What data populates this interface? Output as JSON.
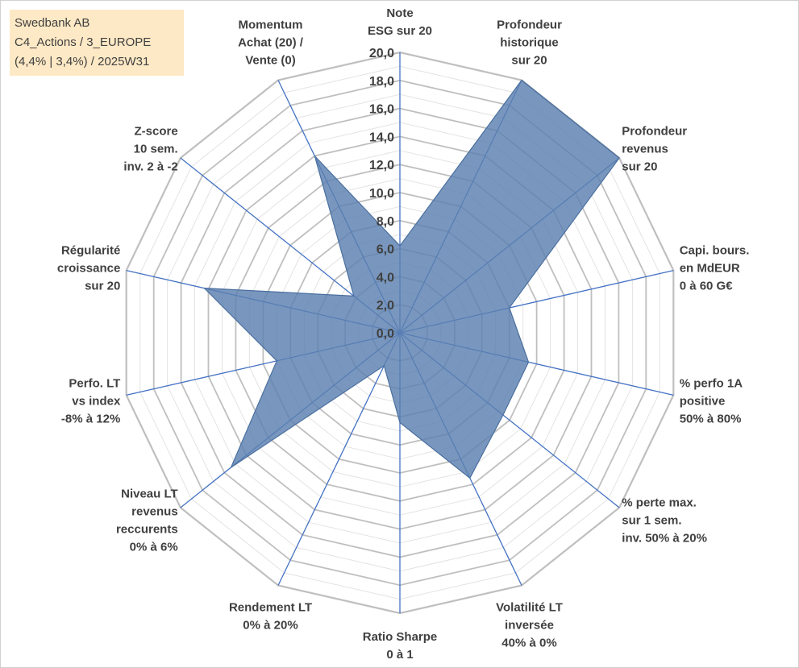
{
  "chart_data": {
    "type": "radar",
    "title_lines": [
      "Swedbank AB",
      "C4_Actions / 3_EUROPE",
      "(4,4% | 3,4%) / 2025W31"
    ],
    "rmin": 0,
    "rmax": 20,
    "tick_step": 2,
    "minor_step": 1,
    "tick_labels": [
      "0,0",
      "2,0",
      "4,0",
      "6,0",
      "8,0",
      "10,0",
      "12,0",
      "14,0",
      "16,0",
      "18,0",
      "20,0"
    ],
    "axes": [
      {
        "label": [
          "Note",
          "ESG sur 20"
        ],
        "value": 6.2
      },
      {
        "label": [
          "Profondeur",
          "historique",
          "sur 20"
        ],
        "value": 20.0
      },
      {
        "label": [
          "Profondeur",
          "revenus",
          "sur 20"
        ],
        "value": 20.0
      },
      {
        "label": [
          "Capi. bours.",
          "en MdEUR",
          "0 à 60 G€"
        ],
        "value": 8.0
      },
      {
        "label": [
          "% perfo 1A",
          "positive",
          "50% à 80%"
        ],
        "value": 9.4
      },
      {
        "label": [
          "% perte max.",
          "sur 1 sem.",
          "inv. 50% à 20%"
        ],
        "value": 9.4
      },
      {
        "label": [
          "Volatilité LT",
          "inversée",
          "40% à 0%"
        ],
        "value": 11.5
      },
      {
        "label": [
          "Ratio Sharpe",
          "0 à 1"
        ],
        "value": 6.4
      },
      {
        "label": [
          "Rendement LT",
          "0% à 20%"
        ],
        "value": 2.6
      },
      {
        "label": [
          "Niveau LT",
          "revenus",
          "reccurents",
          "0% à 6%"
        ],
        "value": 15.4
      },
      {
        "label": [
          "Perfo. LT",
          "vs index",
          "-8% à 12%"
        ],
        "value": 9.0
      },
      {
        "label": [
          "Régularité",
          "croissance",
          "sur 20"
        ],
        "value": 14.3
      },
      {
        "label": [
          "Z-score",
          "10 sem.",
          "inv. 2 à -2"
        ],
        "value": 4.2
      },
      {
        "label": [
          "Momentum",
          "Achat (20) /",
          "Vente (0)"
        ],
        "value": 14.0
      }
    ],
    "grid": true,
    "legend": "none",
    "colors": {
      "fill": "#5b80b0",
      "fill_stroke": "#4a6f9f",
      "spokes": "#4472c4",
      "grid": "#bfbfbf"
    }
  }
}
